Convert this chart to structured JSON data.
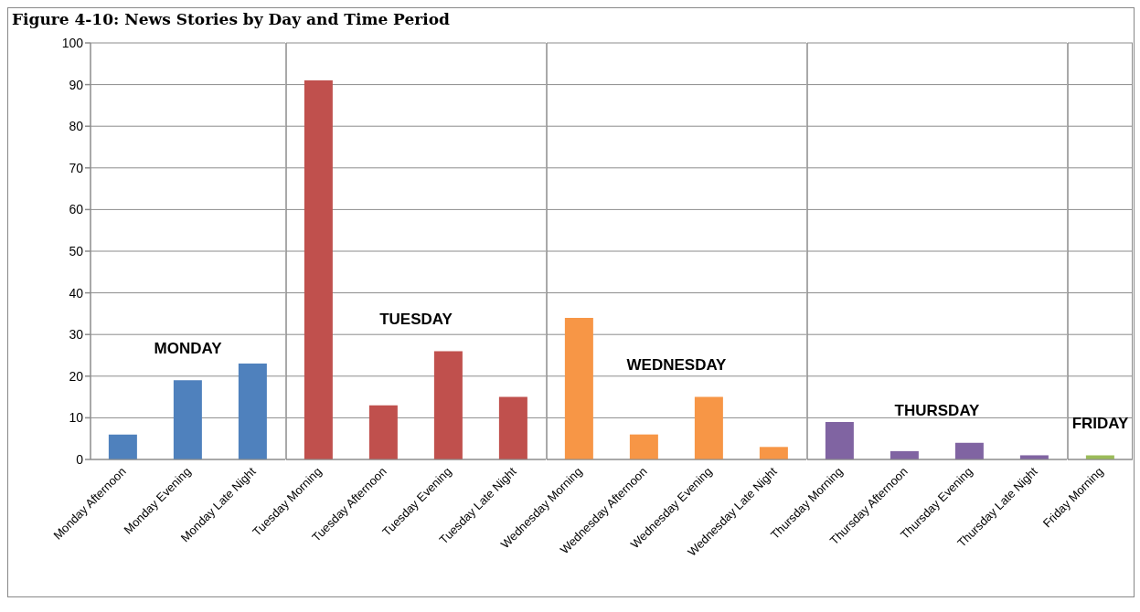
{
  "chart_data": [
    {
      "type": "bar",
      "title": "Figure 4-10: News Stories by Day and Time Period",
      "categories": [
        "Monday Afternoon",
        "Monday Evening",
        "Monday Late Night"
      ],
      "values": [
        6,
        19,
        23
      ],
      "colors": [
        "#4f81bd",
        "#4f81bd",
        "#4f81bd"
      ],
      "ylim": [
        0,
        100
      ],
      "yticks": [
        0,
        10,
        20,
        30,
        40,
        50,
        60,
        70,
        80,
        90,
        100
      ],
      "grid": "y",
      "annotations": [
        "MONDAY"
      ]
    },
    {
      "type": "bar",
      "categories": [
        "Tuesday Morning",
        "Tuesday Afternoon",
        "Tuesday Evening",
        "Tuesday Late Night"
      ],
      "values": [
        91,
        13,
        26,
        15
      ],
      "colors": [
        "#c0504d",
        "#c0504d",
        "#c0504d",
        "#c0504d"
      ],
      "ylim": [
        0,
        100
      ],
      "yticks": [
        0,
        10,
        20,
        30,
        40,
        50,
        60,
        70,
        80,
        90,
        100
      ],
      "grid": "y",
      "tick_labels": "x",
      "annotations": [
        "TUESDAY"
      ]
    },
    {
      "type": "bar",
      "categories": [
        "Wednesday Morning",
        "Wednesday Afternoon",
        "Wednesday Evening",
        "Wednesday Late Night"
      ],
      "values": [
        34,
        6,
        15,
        3
      ],
      "colors": [
        "#f79646",
        "#f79646",
        "#f79646",
        "#f79646"
      ],
      "ylim": [
        0,
        100
      ],
      "yticks": [
        0,
        10,
        20,
        30,
        40,
        50,
        60,
        70,
        80,
        90,
        100
      ],
      "grid": "y",
      "tick_labels": "x",
      "annotations": [
        "WEDNESDAY"
      ]
    },
    {
      "type": "bar",
      "categories": [
        "Thursday Morning",
        "Thursday Afternoon",
        "Thursday Evening",
        "Thursday Late Night"
      ],
      "values": [
        9,
        2,
        4,
        1
      ],
      "colors": [
        "#8064a2",
        "#8064a2",
        "#8064a2",
        "#8064a2"
      ],
      "ylim": [
        0,
        100
      ],
      "yticks": [
        0,
        10,
        20,
        30,
        40,
        50,
        60,
        70,
        80,
        90,
        100
      ],
      "grid": "y",
      "tick_labels": "x",
      "annotations": [
        "THURSDAY"
      ]
    },
    {
      "type": "bar",
      "categories": [
        "Friday Morning"
      ],
      "values": [
        1
      ],
      "colors": [
        "#9bbb59"
      ],
      "ylim": [
        0,
        100
      ],
      "yticks": [
        0,
        10,
        20,
        30,
        40,
        50,
        60,
        70,
        80,
        90,
        100
      ],
      "grid": "y",
      "tick_labels": "x",
      "annotations": [
        "FRIDAY"
      ]
    }
  ]
}
